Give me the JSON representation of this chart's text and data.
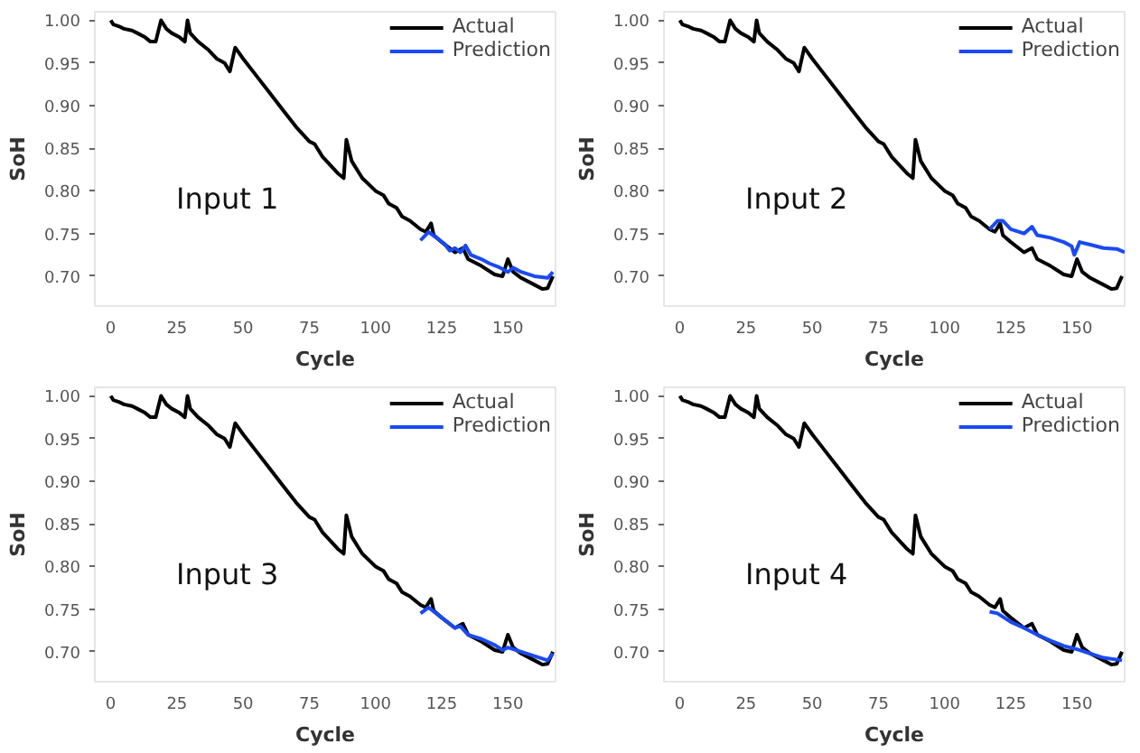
{
  "chart_data": [
    {
      "type": "line",
      "xlabel": "Cycle",
      "ylabel": "SoH",
      "annotations": [
        "Input 1"
      ],
      "xlim": [
        -6,
        168
      ],
      "ylim": [
        0.665,
        1.01
      ],
      "xticks": [
        0,
        25,
        50,
        75,
        100,
        125,
        150
      ],
      "yticks": [
        {
          "value": 0.7,
          "label": "0.70"
        },
        0.75,
        {
          "value": 0.8,
          "label": "0.80"
        },
        0.85,
        {
          "value": 0.9,
          "label": "0.90"
        },
        0.95,
        {
          "value": 1.0,
          "label": "1.00"
        }
      ],
      "legend": "top right",
      "series": [
        {
          "name": "Actual",
          "color": "#000000",
          "x": [
            0,
            1,
            3,
            5,
            8,
            10,
            13,
            15,
            17,
            19,
            21,
            23,
            26,
            28,
            29,
            30,
            33,
            37,
            40,
            43,
            45,
            47,
            50,
            55,
            60,
            65,
            70,
            75,
            77,
            78,
            80,
            83,
            86,
            88,
            89,
            91,
            95,
            100,
            103,
            105,
            108,
            110,
            113,
            117,
            119,
            121,
            122,
            125,
            130,
            133,
            135,
            140,
            145,
            148,
            150,
            152,
            155,
            160,
            163,
            165,
            167
          ],
          "values": [
            1.0,
            0.995,
            0.993,
            0.99,
            0.988,
            0.985,
            0.98,
            0.975,
            0.975,
            1.0,
            0.99,
            0.985,
            0.98,
            0.975,
            1.0,
            0.985,
            0.975,
            0.965,
            0.955,
            0.95,
            0.94,
            0.968,
            0.955,
            0.935,
            0.915,
            0.895,
            0.875,
            0.858,
            0.855,
            0.85,
            0.84,
            0.83,
            0.82,
            0.815,
            0.86,
            0.835,
            0.815,
            0.8,
            0.795,
            0.785,
            0.78,
            0.77,
            0.765,
            0.755,
            0.752,
            0.762,
            0.748,
            0.74,
            0.728,
            0.733,
            0.72,
            0.712,
            0.702,
            0.7,
            0.72,
            0.705,
            0.698,
            0.69,
            0.685,
            0.686,
            0.7
          ]
        },
        {
          "name": "Prediction",
          "color": "#1a4af5",
          "x": [
            117,
            120,
            123,
            126,
            128,
            130,
            132,
            134,
            136,
            140,
            143,
            147,
            150,
            152,
            155,
            160,
            165,
            167
          ],
          "values": [
            0.742,
            0.752,
            0.745,
            0.738,
            0.73,
            0.733,
            0.728,
            0.736,
            0.725,
            0.72,
            0.715,
            0.71,
            0.705,
            0.71,
            0.705,
            0.7,
            0.698,
            0.705
          ]
        }
      ]
    },
    {
      "type": "line",
      "xlabel": "Cycle",
      "ylabel": "SoH",
      "annotations": [
        "Input 2"
      ],
      "xlim": [
        -6,
        168
      ],
      "ylim": [
        0.665,
        1.01
      ],
      "xticks": [
        0,
        25,
        50,
        75,
        100,
        125,
        150
      ],
      "yticks": [
        {
          "value": 0.7,
          "label": "0.70"
        },
        0.75,
        {
          "value": 0.8,
          "label": "0.80"
        },
        0.85,
        {
          "value": 0.9,
          "label": "0.90"
        },
        0.95,
        {
          "value": 1.0,
          "label": "1.00"
        }
      ],
      "legend": "top right",
      "series": [
        {
          "name": "Actual",
          "color": "#000000",
          "x": [
            0,
            1,
            3,
            5,
            8,
            10,
            13,
            15,
            17,
            19,
            21,
            23,
            26,
            28,
            29,
            30,
            33,
            37,
            40,
            43,
            45,
            47,
            50,
            55,
            60,
            65,
            70,
            75,
            77,
            78,
            80,
            83,
            86,
            88,
            89,
            91,
            95,
            100,
            103,
            105,
            108,
            110,
            113,
            117,
            119,
            121,
            122,
            125,
            130,
            133,
            135,
            140,
            145,
            148,
            150,
            152,
            155,
            160,
            163,
            165,
            167
          ],
          "values": [
            1.0,
            0.995,
            0.993,
            0.99,
            0.988,
            0.985,
            0.98,
            0.975,
            0.975,
            1.0,
            0.99,
            0.985,
            0.98,
            0.975,
            1.0,
            0.985,
            0.975,
            0.965,
            0.955,
            0.95,
            0.94,
            0.968,
            0.955,
            0.935,
            0.915,
            0.895,
            0.875,
            0.858,
            0.855,
            0.85,
            0.84,
            0.83,
            0.82,
            0.815,
            0.86,
            0.835,
            0.815,
            0.8,
            0.795,
            0.785,
            0.78,
            0.77,
            0.765,
            0.755,
            0.752,
            0.762,
            0.748,
            0.74,
            0.728,
            0.733,
            0.72,
            0.712,
            0.702,
            0.7,
            0.72,
            0.705,
            0.698,
            0.69,
            0.685,
            0.686,
            0.7
          ]
        },
        {
          "name": "Prediction",
          "color": "#1a4af5",
          "x": [
            117,
            120,
            122,
            125,
            130,
            133,
            135,
            140,
            145,
            148,
            149,
            151,
            155,
            160,
            165,
            168
          ],
          "values": [
            0.755,
            0.765,
            0.765,
            0.755,
            0.75,
            0.758,
            0.748,
            0.745,
            0.74,
            0.735,
            0.725,
            0.74,
            0.737,
            0.733,
            0.732,
            0.728
          ]
        }
      ]
    },
    {
      "type": "line",
      "xlabel": "Cycle",
      "ylabel": "SoH",
      "annotations": [
        "Input 3"
      ],
      "xlim": [
        -6,
        168
      ],
      "ylim": [
        0.665,
        1.01
      ],
      "xticks": [
        0,
        25,
        50,
        75,
        100,
        125,
        150
      ],
      "yticks": [
        {
          "value": 0.7,
          "label": "0.70"
        },
        0.75,
        {
          "value": 0.8,
          "label": "0.80"
        },
        0.85,
        {
          "value": 0.9,
          "label": "0.90"
        },
        0.95,
        {
          "value": 1.0,
          "label": "1.00"
        }
      ],
      "legend": "top right",
      "series": [
        {
          "name": "Actual",
          "color": "#000000",
          "x": [
            0,
            1,
            3,
            5,
            8,
            10,
            13,
            15,
            17,
            19,
            21,
            23,
            26,
            28,
            29,
            30,
            33,
            37,
            40,
            43,
            45,
            47,
            50,
            55,
            60,
            65,
            70,
            75,
            77,
            78,
            80,
            83,
            86,
            88,
            89,
            91,
            95,
            100,
            103,
            105,
            108,
            110,
            113,
            117,
            119,
            121,
            122,
            125,
            130,
            133,
            135,
            140,
            145,
            148,
            150,
            152,
            155,
            160,
            163,
            165,
            167
          ],
          "values": [
            1.0,
            0.995,
            0.993,
            0.99,
            0.988,
            0.985,
            0.98,
            0.975,
            0.975,
            1.0,
            0.99,
            0.985,
            0.98,
            0.975,
            1.0,
            0.985,
            0.975,
            0.965,
            0.955,
            0.95,
            0.94,
            0.968,
            0.955,
            0.935,
            0.915,
            0.895,
            0.875,
            0.858,
            0.855,
            0.85,
            0.84,
            0.83,
            0.82,
            0.815,
            0.86,
            0.835,
            0.815,
            0.8,
            0.795,
            0.785,
            0.78,
            0.77,
            0.765,
            0.755,
            0.752,
            0.762,
            0.748,
            0.74,
            0.728,
            0.733,
            0.72,
            0.712,
            0.702,
            0.7,
            0.72,
            0.705,
            0.698,
            0.69,
            0.685,
            0.686,
            0.7
          ]
        },
        {
          "name": "Prediction",
          "color": "#1a4af5",
          "x": [
            117,
            120,
            125,
            130,
            132,
            135,
            140,
            145,
            148,
            150,
            155,
            160,
            165,
            167
          ],
          "values": [
            0.745,
            0.752,
            0.74,
            0.728,
            0.73,
            0.72,
            0.715,
            0.708,
            0.702,
            0.705,
            0.7,
            0.695,
            0.69,
            0.698
          ]
        }
      ]
    },
    {
      "type": "line",
      "xlabel": "Cycle",
      "ylabel": "SoH",
      "annotations": [
        "Input 4"
      ],
      "xlim": [
        -6,
        168
      ],
      "ylim": [
        0.665,
        1.01
      ],
      "xticks": [
        0,
        25,
        50,
        75,
        100,
        125,
        150
      ],
      "yticks": [
        {
          "value": 0.7,
          "label": "0.70"
        },
        0.75,
        {
          "value": 0.8,
          "label": "0.80"
        },
        0.85,
        {
          "value": 0.9,
          "label": "0.90"
        },
        0.95,
        {
          "value": 1.0,
          "label": "1.00"
        }
      ],
      "legend": "top right",
      "series": [
        {
          "name": "Actual",
          "color": "#000000",
          "x": [
            0,
            1,
            3,
            5,
            8,
            10,
            13,
            15,
            17,
            19,
            21,
            23,
            26,
            28,
            29,
            30,
            33,
            37,
            40,
            43,
            45,
            47,
            50,
            55,
            60,
            65,
            70,
            75,
            77,
            78,
            80,
            83,
            86,
            88,
            89,
            91,
            95,
            100,
            103,
            105,
            108,
            110,
            113,
            117,
            119,
            121,
            122,
            125,
            130,
            133,
            135,
            140,
            145,
            148,
            150,
            152,
            155,
            160,
            163,
            165,
            167
          ],
          "values": [
            1.0,
            0.995,
            0.993,
            0.99,
            0.988,
            0.985,
            0.98,
            0.975,
            0.975,
            1.0,
            0.99,
            0.985,
            0.98,
            0.975,
            1.0,
            0.985,
            0.975,
            0.965,
            0.955,
            0.95,
            0.94,
            0.968,
            0.955,
            0.935,
            0.915,
            0.895,
            0.875,
            0.858,
            0.855,
            0.85,
            0.84,
            0.83,
            0.82,
            0.815,
            0.86,
            0.835,
            0.815,
            0.8,
            0.795,
            0.785,
            0.78,
            0.77,
            0.765,
            0.755,
            0.752,
            0.762,
            0.748,
            0.74,
            0.728,
            0.733,
            0.72,
            0.712,
            0.702,
            0.7,
            0.72,
            0.705,
            0.698,
            0.69,
            0.685,
            0.686,
            0.7
          ]
        },
        {
          "name": "Prediction",
          "color": "#1a4af5",
          "x": [
            117,
            120,
            125,
            130,
            135,
            140,
            145,
            150,
            155,
            160,
            167
          ],
          "values": [
            0.747,
            0.745,
            0.735,
            0.728,
            0.72,
            0.713,
            0.707,
            0.703,
            0.698,
            0.693,
            0.69
          ]
        }
      ]
    }
  ]
}
